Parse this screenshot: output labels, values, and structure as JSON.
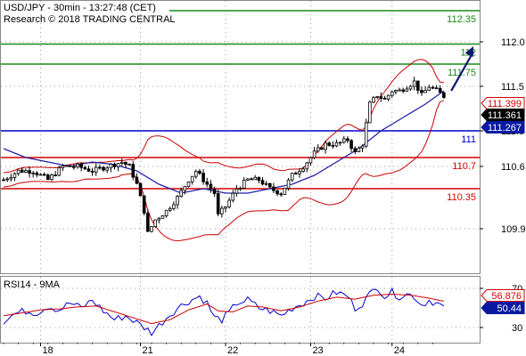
{
  "header": {
    "title_line": "USD/JPY - 30min - 13:27:48 (CET)",
    "research_line": "Research © 2018 TRADING CENTRAL"
  },
  "colors": {
    "resistance": "#1a8a1a",
    "support": "#d40000",
    "pivot": "#0000cc",
    "bands": "#cc0000",
    "moving_average": "#2222aa",
    "candles": "#000000",
    "forecast_arrow": "#0a1a6e"
  },
  "chart_data": [
    {
      "type": "candlestick",
      "title": "USD/JPY - 30min - 13:27:48 (CET)",
      "ylim": [
        109.6,
        112.45
      ],
      "y_ticks": [
        112.0,
        111.5,
        111.0,
        110.6,
        109.9
      ],
      "y_tick_labels": [
        "112.0",
        "111.5",
        "111.0",
        "110.6",
        "109.9"
      ],
      "x_tick_labels": [
        "18",
        "21",
        "22",
        "23",
        "24"
      ],
      "grid": true,
      "levels": [
        {
          "label": "112.35",
          "value": 112.35,
          "kind": "resistance"
        },
        {
          "label": "112",
          "value": 111.975,
          "kind": "resistance"
        },
        {
          "label": "111.75",
          "value": 111.75,
          "kind": "resistance"
        },
        {
          "label": "111",
          "value": 111.0,
          "kind": "pivot"
        },
        {
          "label": "110.7",
          "value": 110.7,
          "kind": "support"
        },
        {
          "label": "110.35",
          "value": 110.35,
          "kind": "support"
        }
      ],
      "price_tags": [
        {
          "label": "111.399",
          "value": 111.399,
          "style": "red"
        },
        {
          "label": "111.361",
          "value": 111.361,
          "style": "black"
        },
        {
          "label": "111.267",
          "value": 111.267,
          "style": "blue"
        }
      ],
      "price_path": [
        [
          0,
          110.45
        ],
        [
          4,
          110.55
        ],
        [
          8,
          110.55
        ],
        [
          12,
          110.45
        ],
        [
          16,
          110.6
        ],
        [
          20,
          110.6
        ],
        [
          24,
          110.55
        ],
        [
          28,
          110.6
        ],
        [
          32,
          110.65
        ],
        [
          34,
          110.6
        ],
        [
          36,
          110.4
        ],
        [
          38,
          110.1
        ],
        [
          39,
          109.85
        ],
        [
          41,
          110.0
        ],
        [
          44,
          110.1
        ],
        [
          47,
          110.25
        ],
        [
          50,
          110.45
        ],
        [
          52,
          110.55
        ],
        [
          55,
          110.4
        ],
        [
          57,
          110.3
        ],
        [
          58,
          110.05
        ],
        [
          60,
          110.15
        ],
        [
          63,
          110.35
        ],
        [
          66,
          110.45
        ],
        [
          69,
          110.45
        ],
        [
          72,
          110.35
        ],
        [
          75,
          110.3
        ],
        [
          78,
          110.5
        ],
        [
          81,
          110.6
        ],
        [
          84,
          110.75
        ],
        [
          87,
          110.85
        ],
        [
          90,
          110.85
        ],
        [
          93,
          110.9
        ],
        [
          95,
          110.75
        ],
        [
          97,
          110.85
        ],
        [
          99,
          111.3
        ],
        [
          101,
          111.4
        ],
        [
          103,
          111.35
        ],
        [
          105,
          111.45
        ],
        [
          107,
          111.45
        ],
        [
          109,
          111.5
        ],
        [
          111,
          111.55
        ],
        [
          113,
          111.4
        ],
        [
          115,
          111.5
        ],
        [
          117,
          111.45
        ],
        [
          119,
          111.39
        ]
      ],
      "ma_path": [
        [
          0,
          110.8
        ],
        [
          6,
          110.7
        ],
        [
          12,
          110.65
        ],
        [
          18,
          110.6
        ],
        [
          24,
          110.65
        ],
        [
          30,
          110.62
        ],
        [
          36,
          110.55
        ],
        [
          42,
          110.4
        ],
        [
          48,
          110.3
        ],
        [
          54,
          110.35
        ],
        [
          60,
          110.3
        ],
        [
          66,
          110.3
        ],
        [
          72,
          110.35
        ],
        [
          78,
          110.4
        ],
        [
          84,
          110.5
        ],
        [
          90,
          110.65
        ],
        [
          96,
          110.8
        ],
        [
          102,
          111.0
        ],
        [
          108,
          111.15
        ],
        [
          114,
          111.3
        ],
        [
          119,
          111.45
        ]
      ],
      "forecast_arrow": {
        "from": [
          121,
          111.45
        ],
        "to": [
          127,
          111.95
        ]
      }
    },
    {
      "type": "line",
      "title": "RSI14 - 9MA",
      "ylim": [
        22,
        78
      ],
      "y_ticks": [
        70,
        30
      ],
      "y_tick_labels": [
        "70",
        "30"
      ],
      "series": [
        {
          "name": "RSI14",
          "color": "#0000cc",
          "values": [
            [
              0,
              37
            ],
            [
              3,
              44
            ],
            [
              6,
              47
            ],
            [
              9,
              45
            ],
            [
              12,
              52
            ],
            [
              15,
              48
            ],
            [
              18,
              55
            ],
            [
              21,
              50
            ],
            [
              24,
              58
            ],
            [
              27,
              47
            ],
            [
              30,
              38
            ],
            [
              33,
              42
            ],
            [
              36,
              35
            ],
            [
              38,
              30
            ],
            [
              40,
              25
            ],
            [
              42,
              32
            ],
            [
              44,
              40
            ],
            [
              47,
              50
            ],
            [
              50,
              57
            ],
            [
              53,
              62
            ],
            [
              55,
              55
            ],
            [
              57,
              40
            ],
            [
              59,
              38
            ],
            [
              61,
              45
            ],
            [
              63,
              55
            ],
            [
              66,
              58
            ],
            [
              69,
              50
            ],
            [
              72,
              47
            ],
            [
              75,
              42
            ],
            [
              78,
              50
            ],
            [
              81,
              55
            ],
            [
              84,
              62
            ],
            [
              87,
              60
            ],
            [
              90,
              66
            ],
            [
              93,
              62
            ],
            [
              95,
              50
            ],
            [
              97,
              55
            ],
            [
              99,
              64
            ],
            [
              101,
              72
            ],
            [
              103,
              62
            ],
            [
              105,
              66
            ],
            [
              107,
              62
            ],
            [
              109,
              64
            ],
            [
              111,
              62
            ],
            [
              113,
              53
            ],
            [
              115,
              58
            ],
            [
              117,
              55
            ],
            [
              119,
              50.44
            ]
          ]
        },
        {
          "name": "9MA",
          "color": "#cc0000",
          "values": [
            [
              0,
              42
            ],
            [
              5,
              45
            ],
            [
              10,
              48
            ],
            [
              15,
              49
            ],
            [
              20,
              51
            ],
            [
              25,
              52
            ],
            [
              30,
              46
            ],
            [
              35,
              40
            ],
            [
              40,
              34
            ],
            [
              45,
              38
            ],
            [
              50,
              48
            ],
            [
              55,
              54
            ],
            [
              58,
              47
            ],
            [
              62,
              46
            ],
            [
              66,
              52
            ],
            [
              70,
              51
            ],
            [
              75,
              47
            ],
            [
              80,
              51
            ],
            [
              85,
              57
            ],
            [
              90,
              61
            ],
            [
              95,
              59
            ],
            [
              100,
              63
            ],
            [
              105,
              64
            ],
            [
              110,
              63
            ],
            [
              115,
              60
            ],
            [
              119,
              56.876
            ]
          ]
        }
      ],
      "value_tags": [
        {
          "label": "56.876",
          "value": 56.876,
          "style": "red"
        },
        {
          "label": "50.44",
          "value": 50.44,
          "style": "blue"
        }
      ]
    }
  ]
}
